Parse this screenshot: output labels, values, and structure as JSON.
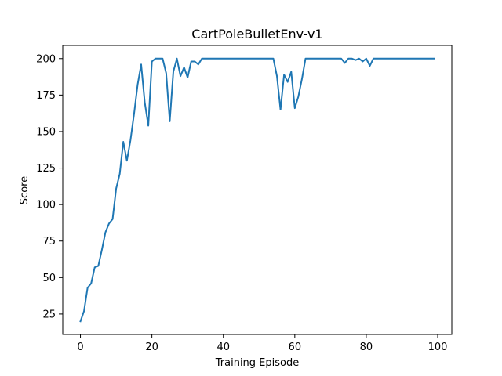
{
  "chart_data": {
    "type": "line",
    "title": "CartPoleBulletEnv-v1",
    "xlabel": "Training Episode",
    "ylabel": "Score",
    "xlim": [
      -4.95,
      103.95
    ],
    "ylim": [
      11,
      209
    ],
    "x_ticks": [
      0,
      20,
      40,
      60,
      80,
      100
    ],
    "y_ticks": [
      25,
      50,
      75,
      100,
      125,
      150,
      175,
      200
    ],
    "x_tick_labels": [
      "0",
      "20",
      "40",
      "60",
      "80",
      "100"
    ],
    "y_tick_labels": [
      "25",
      "50",
      "75",
      "100",
      "125",
      "150",
      "175",
      "200"
    ],
    "grid": false,
    "series": [
      {
        "name": "score",
        "color": "#1f77b4",
        "x": [
          0,
          1,
          2,
          3,
          4,
          5,
          6,
          7,
          8,
          9,
          10,
          11,
          12,
          13,
          14,
          15,
          16,
          17,
          18,
          19,
          20,
          21,
          22,
          23,
          24,
          25,
          26,
          27,
          28,
          29,
          30,
          31,
          32,
          33,
          34,
          35,
          36,
          37,
          38,
          39,
          40,
          41,
          42,
          43,
          44,
          45,
          46,
          47,
          48,
          49,
          50,
          51,
          52,
          53,
          54,
          55,
          56,
          57,
          58,
          59,
          60,
          61,
          62,
          63,
          64,
          65,
          66,
          67,
          68,
          69,
          70,
          71,
          72,
          73,
          74,
          75,
          76,
          77,
          78,
          79,
          80,
          81,
          82,
          83,
          84,
          85,
          86,
          87,
          88,
          89,
          90,
          91,
          92,
          93,
          94,
          95,
          96,
          97,
          98,
          99
        ],
        "values": [
          20,
          27,
          43,
          46,
          57,
          58,
          69,
          81,
          87,
          90,
          111,
          121,
          143,
          130,
          144,
          162,
          182,
          196,
          170,
          154,
          198,
          200,
          200,
          200,
          190,
          157,
          191,
          200,
          188,
          194,
          187,
          198,
          198,
          196,
          200,
          200,
          200,
          200,
          200,
          200,
          200,
          200,
          200,
          200,
          200,
          200,
          200,
          200,
          200,
          200,
          200,
          200,
          200,
          200,
          200,
          188,
          165,
          189,
          184,
          191,
          166,
          174,
          186,
          200,
          200,
          200,
          200,
          200,
          200,
          200,
          200,
          200,
          200,
          200,
          197,
          200,
          200,
          199,
          200,
          198,
          200,
          195,
          200,
          200,
          200,
          200,
          200,
          200,
          200,
          200,
          200,
          200,
          200,
          200,
          200,
          200,
          200,
          200,
          200,
          200
        ]
      }
    ]
  }
}
